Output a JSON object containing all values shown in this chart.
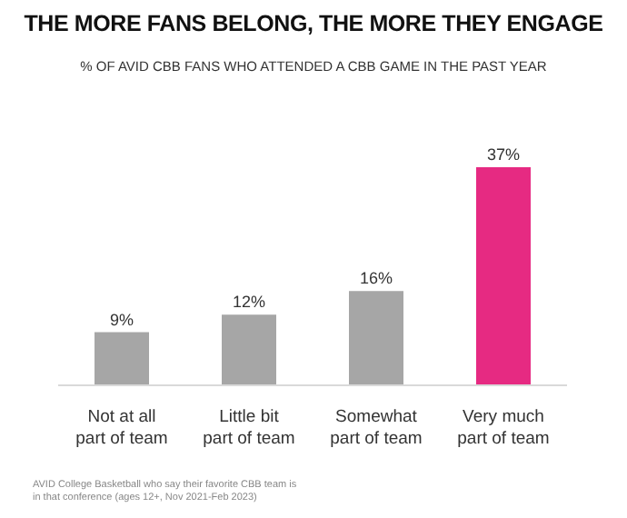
{
  "chart_data": {
    "type": "bar",
    "title": "THE MORE FANS BELONG, THE MORE THEY ENGAGE",
    "subtitle": "% OF AVID CBB FANS WHO ATTENDED A CBB GAME IN THE PAST YEAR",
    "categories": [
      "Not at all part of team",
      "Little bit part of team",
      "Somewhat part of team",
      "Very much part of team"
    ],
    "values": [
      9,
      12,
      16,
      37
    ],
    "colors": [
      "#a6a6a6",
      "#a6a6a6",
      "#a6a6a6",
      "#e62a82"
    ],
    "value_labels": [
      "9%",
      "12%",
      "16%",
      "37%"
    ],
    "annotations": [
      "AVID College Basketball who say their favorite CBB team is in that conference (ages 12+, Nov 2021-Feb 2023)"
    ],
    "grid": false,
    "legend": false
  }
}
